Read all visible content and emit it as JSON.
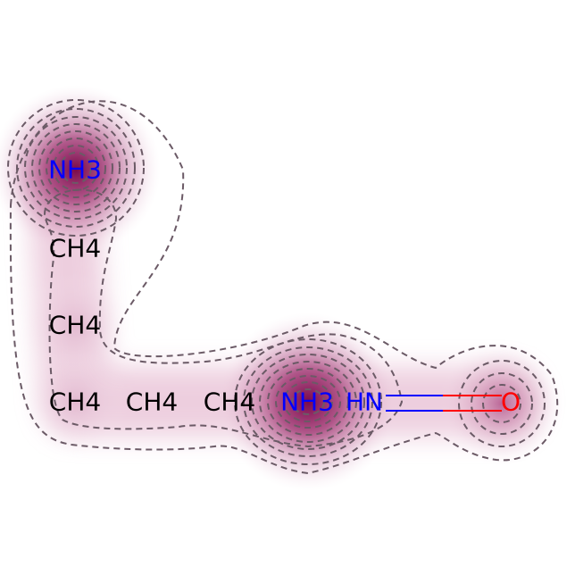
{
  "diagram": {
    "type": "molecule-similarity-map",
    "colors": {
      "carbon": "#000000",
      "nitrogen": "#0000ff",
      "oxygen": "#ff0000",
      "density": "#8a0f55",
      "contour": "#6b5a66",
      "background": "#ffffff"
    },
    "atoms": [
      {
        "id": "n-top",
        "label": "NH3",
        "element": "N"
      },
      {
        "id": "c-1",
        "label": "CH4",
        "element": "C"
      },
      {
        "id": "c-2",
        "label": "CH4",
        "element": "C"
      },
      {
        "id": "c-3",
        "label": "CH4",
        "element": "C"
      },
      {
        "id": "c-4",
        "label": "CH4",
        "element": "C"
      },
      {
        "id": "c-5",
        "label": "CH4",
        "element": "C"
      },
      {
        "id": "n-mid",
        "label": "NH3",
        "element": "N"
      },
      {
        "id": "n-hn",
        "label": "HN",
        "element": "N"
      },
      {
        "id": "o-end",
        "label": "O",
        "element": "O"
      }
    ]
  }
}
